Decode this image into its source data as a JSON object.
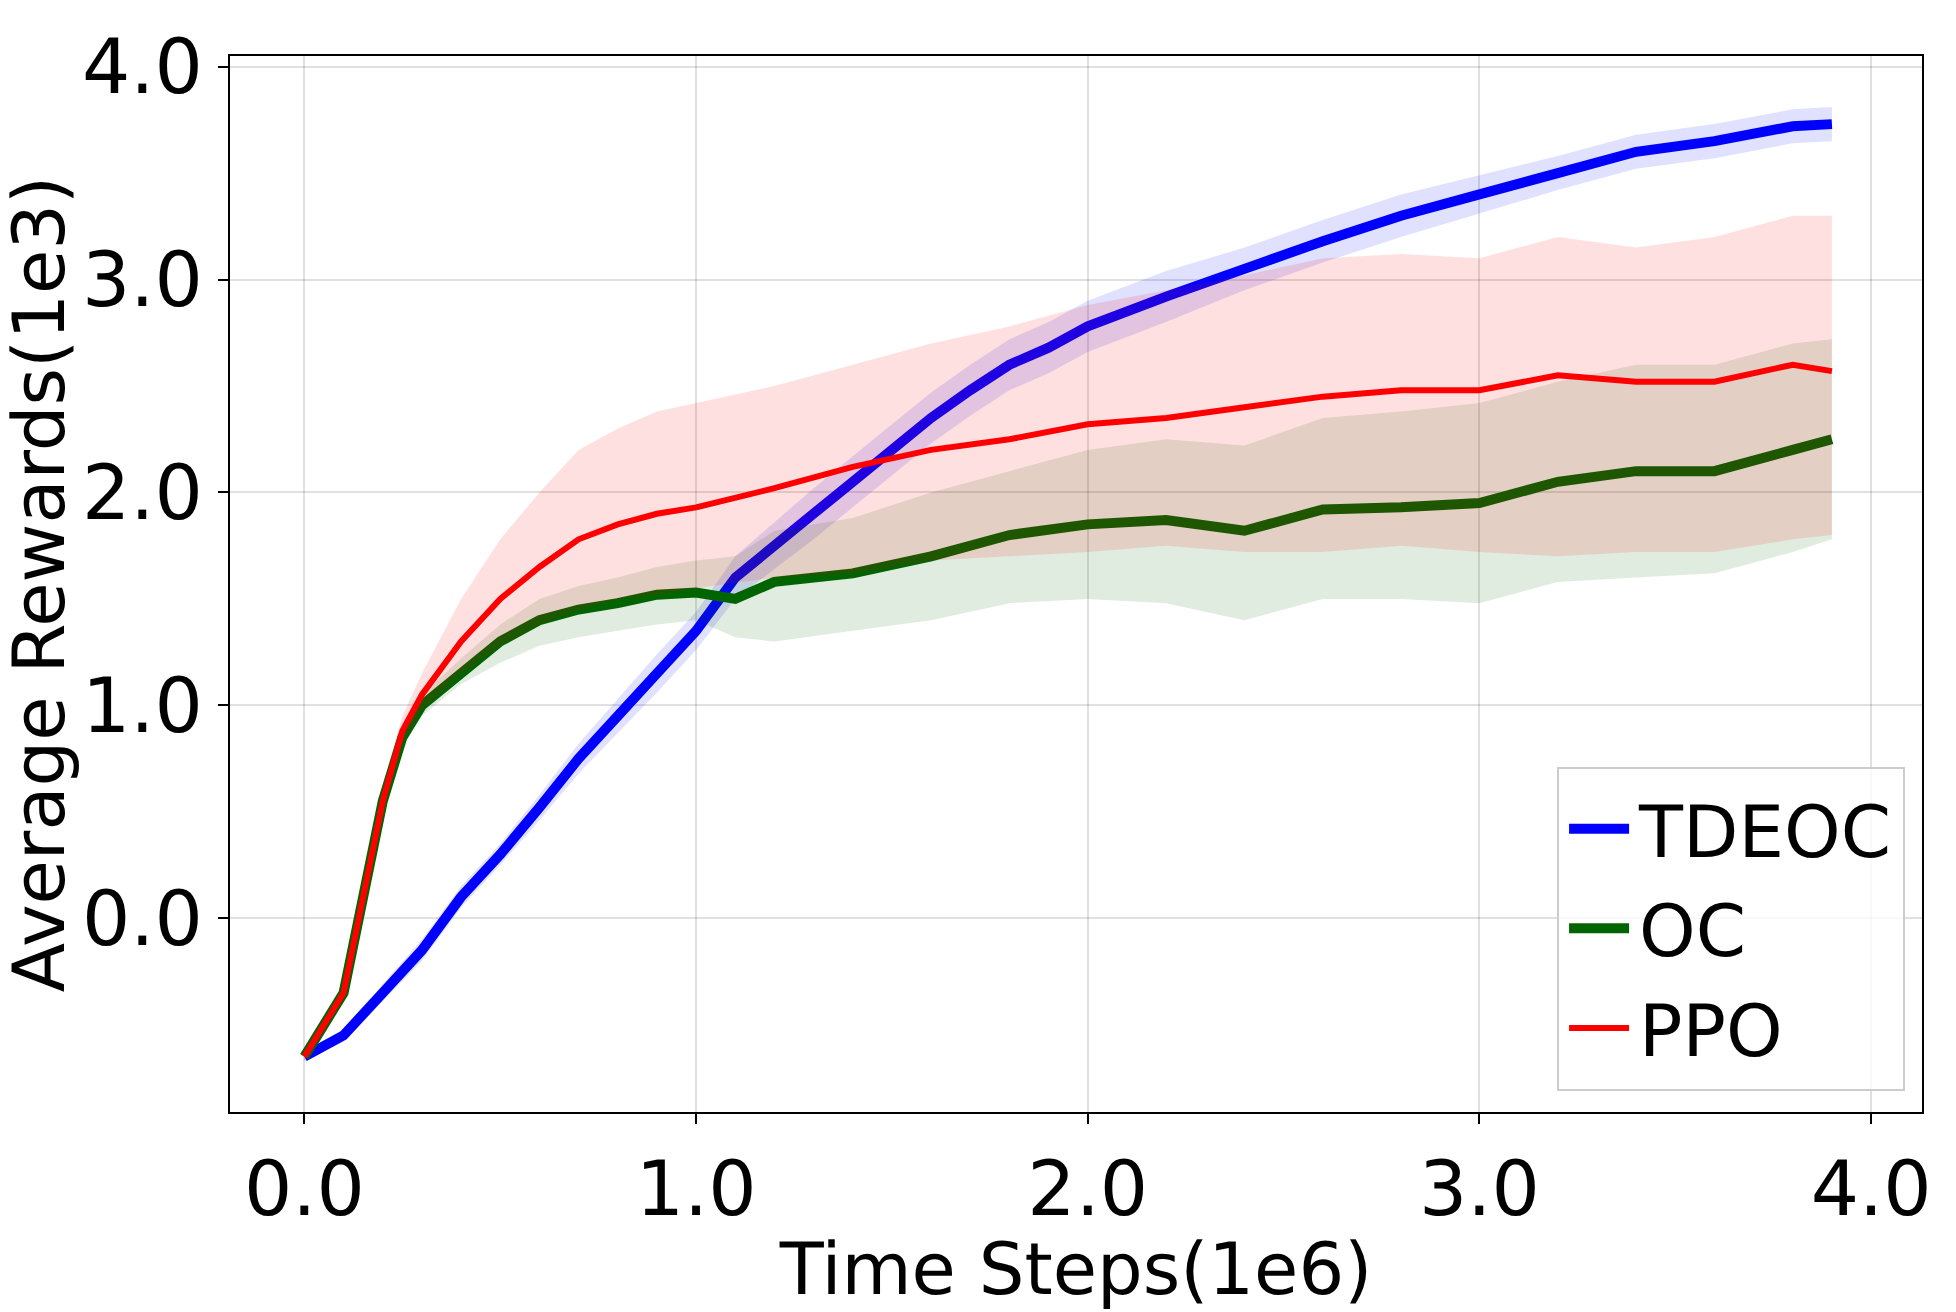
{
  "chart_data": {
    "type": "line",
    "xlabel": "Time Steps(1e6)",
    "ylabel": "Average Rewards(1e3)",
    "xlim": [
      -0.19,
      4.13
    ],
    "ylim": [
      -0.91,
      4.05
    ],
    "xticks": [
      {
        "value": 0,
        "label": "0.0"
      },
      {
        "value": 1,
        "label": "1.0"
      },
      {
        "value": 2,
        "label": "2.0"
      },
      {
        "value": 3,
        "label": "3.0"
      },
      {
        "value": 4,
        "label": "4.0"
      }
    ],
    "yticks": [
      {
        "value": 0,
        "label": "0.0"
      },
      {
        "value": 1,
        "label": "1.0"
      },
      {
        "value": 2,
        "label": "2.0"
      },
      {
        "value": 3,
        "label": "3.0"
      },
      {
        "value": 4,
        "label": "4.0"
      }
    ],
    "grid": true,
    "legend": "bottom right",
    "line_style": "solid",
    "series": [
      {
        "name": "TDEOC",
        "color": "#0000ff",
        "x": [
          0,
          0.1,
          0.2,
          0.3,
          0.4,
          0.5,
          0.6,
          0.7,
          0.8,
          0.9,
          1.0,
          1.1,
          1.2,
          1.3,
          1.4,
          1.5,
          1.6,
          1.7,
          1.8,
          1.9,
          2.0,
          2.2,
          2.4,
          2.6,
          2.8,
          3.0,
          3.2,
          3.4,
          3.6,
          3.8,
          3.9
        ],
        "values": [
          -0.65,
          -0.55,
          -0.35,
          -0.15,
          0.1,
          0.3,
          0.52,
          0.75,
          0.95,
          1.15,
          1.35,
          1.6,
          1.75,
          1.9,
          2.05,
          2.2,
          2.35,
          2.48,
          2.6,
          2.68,
          2.78,
          2.92,
          3.05,
          3.18,
          3.3,
          3.4,
          3.5,
          3.6,
          3.65,
          3.72,
          3.73
        ],
        "lower": [
          -0.67,
          -0.58,
          -0.39,
          -0.2,
          0.05,
          0.25,
          0.46,
          0.68,
          0.87,
          1.06,
          1.26,
          1.5,
          1.64,
          1.78,
          1.93,
          2.08,
          2.23,
          2.36,
          2.48,
          2.56,
          2.66,
          2.8,
          2.95,
          3.08,
          3.2,
          3.31,
          3.42,
          3.52,
          3.57,
          3.64,
          3.65
        ],
        "upper": [
          -0.63,
          -0.52,
          -0.31,
          -0.1,
          0.15,
          0.35,
          0.58,
          0.82,
          1.03,
          1.24,
          1.44,
          1.7,
          1.86,
          2.02,
          2.17,
          2.32,
          2.47,
          2.6,
          2.72,
          2.8,
          2.9,
          3.04,
          3.15,
          3.28,
          3.4,
          3.49,
          3.58,
          3.68,
          3.73,
          3.8,
          3.81
        ]
      },
      {
        "name": "OC",
        "color": "#006400",
        "x": [
          0,
          0.1,
          0.15,
          0.2,
          0.25,
          0.3,
          0.4,
          0.5,
          0.6,
          0.7,
          0.8,
          0.9,
          1.0,
          1.1,
          1.2,
          1.4,
          1.6,
          1.8,
          2.0,
          2.2,
          2.4,
          2.6,
          2.8,
          3.0,
          3.2,
          3.4,
          3.6,
          3.8,
          3.9
        ],
        "values": [
          -0.65,
          -0.35,
          0.1,
          0.55,
          0.85,
          1.0,
          1.15,
          1.3,
          1.4,
          1.45,
          1.48,
          1.52,
          1.53,
          1.5,
          1.58,
          1.62,
          1.7,
          1.8,
          1.85,
          1.87,
          1.82,
          1.92,
          1.93,
          1.95,
          2.05,
          2.1,
          2.1,
          2.2,
          2.25
        ],
        "lower": [
          -0.67,
          -0.38,
          0.05,
          0.5,
          0.8,
          0.95,
          1.1,
          1.2,
          1.28,
          1.32,
          1.35,
          1.38,
          1.4,
          1.32,
          1.3,
          1.35,
          1.4,
          1.48,
          1.5,
          1.48,
          1.4,
          1.5,
          1.5,
          1.48,
          1.58,
          1.6,
          1.62,
          1.72,
          1.78
        ],
        "upper": [
          -0.63,
          -0.32,
          0.15,
          0.6,
          0.9,
          1.05,
          1.22,
          1.38,
          1.5,
          1.56,
          1.6,
          1.65,
          1.68,
          1.7,
          1.82,
          1.88,
          2.0,
          2.1,
          2.2,
          2.25,
          2.22,
          2.35,
          2.38,
          2.42,
          2.52,
          2.6,
          2.6,
          2.7,
          2.72
        ]
      },
      {
        "name": "PPO",
        "color": "#ff0000",
        "x": [
          0,
          0.1,
          0.15,
          0.2,
          0.25,
          0.3,
          0.4,
          0.5,
          0.6,
          0.7,
          0.8,
          0.9,
          1.0,
          1.2,
          1.4,
          1.6,
          1.8,
          2.0,
          2.2,
          2.4,
          2.6,
          2.8,
          3.0,
          3.2,
          3.4,
          3.6,
          3.8,
          3.9
        ],
        "values": [
          -0.65,
          -0.35,
          0.1,
          0.55,
          0.88,
          1.05,
          1.3,
          1.5,
          1.65,
          1.78,
          1.85,
          1.9,
          1.93,
          2.02,
          2.12,
          2.2,
          2.25,
          2.32,
          2.35,
          2.4,
          2.45,
          2.48,
          2.48,
          2.55,
          2.52,
          2.52,
          2.6,
          2.57
        ],
        "lower": [
          -0.67,
          -0.38,
          0.05,
          0.5,
          0.82,
          0.98,
          1.15,
          1.28,
          1.38,
          1.45,
          1.5,
          1.52,
          1.55,
          1.6,
          1.62,
          1.68,
          1.7,
          1.72,
          1.75,
          1.72,
          1.72,
          1.75,
          1.72,
          1.7,
          1.72,
          1.72,
          1.78,
          1.8
        ],
        "upper": [
          -0.63,
          -0.32,
          0.15,
          0.62,
          0.95,
          1.15,
          1.5,
          1.78,
          2.0,
          2.2,
          2.3,
          2.38,
          2.42,
          2.5,
          2.6,
          2.7,
          2.78,
          2.88,
          2.95,
          3.02,
          3.1,
          3.12,
          3.1,
          3.2,
          3.15,
          3.2,
          3.3,
          3.3
        ]
      }
    ]
  }
}
